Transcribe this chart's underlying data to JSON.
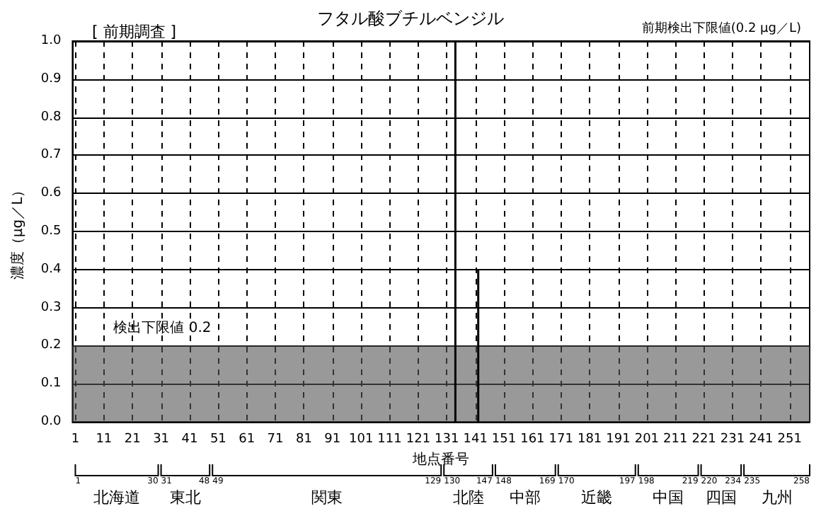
{
  "chart_data": {
    "type": "bar",
    "title": "フタル酸ブチルベンジル",
    "subtitle": "[ 前期調査 ]",
    "xlabel": "地点番号",
    "ylabel": "濃度（μg／L）",
    "x": [
      134,
      142
    ],
    "values": [
      1.0,
      0.4
    ],
    "color": "#000000",
    "xlim": [
      0,
      258
    ],
    "xticks": [
      1,
      11,
      21,
      31,
      41,
      51,
      61,
      71,
      81,
      91,
      101,
      111,
      121,
      131,
      141,
      151,
      161,
      171,
      181,
      191,
      201,
      211,
      221,
      231,
      241,
      251
    ],
    "ylim": [
      0,
      1
    ],
    "yticks": [
      {
        "value": 0,
        "label": "0.0"
      },
      {
        "value": 0.1,
        "label": "0.1"
      },
      {
        "value": 0.2,
        "label": "0.2"
      },
      {
        "value": 0.3,
        "label": "0.3"
      },
      {
        "value": 0.4,
        "label": "0.4"
      },
      {
        "value": 0.5,
        "label": "0.5"
      },
      {
        "value": 0.6,
        "label": "0.6"
      },
      {
        "value": 0.7,
        "label": "0.7"
      },
      {
        "value": 0.8,
        "label": "0.8"
      },
      {
        "value": 0.9,
        "label": "0.9"
      },
      {
        "value": 1,
        "label": "1.0"
      }
    ],
    "grid": true,
    "bands": [
      {
        "axis": "y",
        "from": 0,
        "to": 0.2,
        "label": "検出下限値 0.2",
        "color": "#555555"
      }
    ],
    "annotations": [
      "前期検出下限値(0.2 μg／L)",
      "北海道",
      "1",
      "30",
      "東北",
      "31",
      "48",
      "関東",
      "49",
      "129",
      "北陸",
      "130",
      "147",
      "中部",
      "148",
      "169",
      "近畿",
      "170",
      "197",
      "中国",
      "198",
      "219",
      "四国",
      "220",
      "234",
      "九州",
      "235",
      "258"
    ]
  }
}
